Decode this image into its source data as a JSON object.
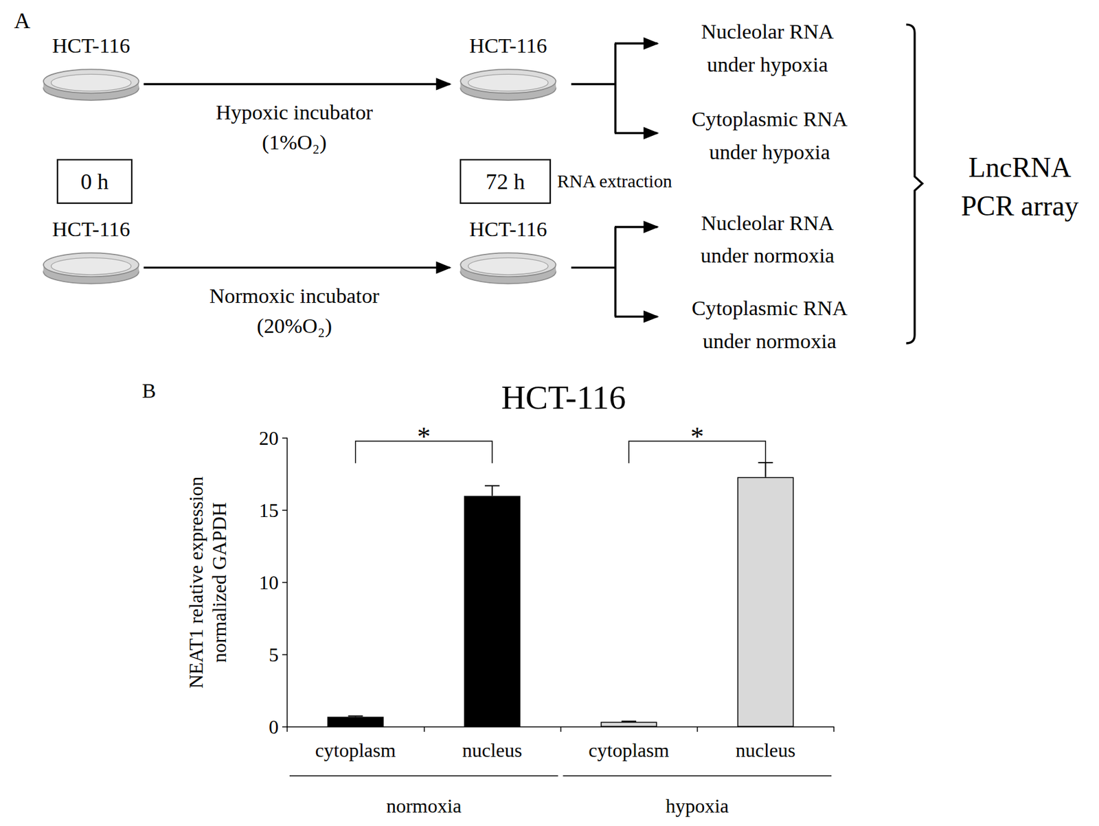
{
  "diagram": {
    "letter": "A",
    "rows": [
      {
        "cell_line_start": "HCT-116",
        "incubator": "Hypoxic incubator",
        "oxygen": "(1%O₂)",
        "cell_line_end": "HCT-116",
        "fractions": [
          "Nucleolar RNA\nunder hypoxia",
          "Cytoplasmic RNA\nunder hypoxia"
        ]
      },
      {
        "cell_line_start": "HCT-116",
        "incubator": "Normoxic incubator",
        "oxygen": "(20%O₂)",
        "cell_line_end": "HCT-116",
        "fractions": [
          "Nucleolar RNA\nunder normoxia",
          "Cytoplasmic RNA\nunder normoxia"
        ]
      }
    ],
    "start_time": "0 h",
    "end_time": "72 h",
    "step": "RNA extraction",
    "assay": "LncRNA\nPCR array"
  },
  "chart_data": {
    "type": "bar",
    "letter": "B",
    "title": "HCT-116",
    "ylabel": "NEAT1 relative expression\nnormalized GAPDH",
    "categories": [
      "cytoplasm",
      "nucleus",
      "cytoplasm",
      "nucleus"
    ],
    "group_labels": [
      "normoxia",
      "normoxia",
      "hypoxia",
      "hypoxia"
    ],
    "values": [
      0.7,
      16.0,
      0.35,
      17.3
    ],
    "errors": [
      0.05,
      0.7,
      0.04,
      1.0
    ],
    "colors": [
      "#000000",
      "#000000",
      "#d9d9d9",
      "#d9d9d9"
    ],
    "ylim": [
      0,
      20
    ],
    "yticks": [
      0,
      5,
      10,
      15,
      20
    ],
    "grid": false,
    "annotations": [
      {
        "text": "*",
        "group": "normoxia"
      },
      {
        "text": "*",
        "group": "hypoxia"
      }
    ]
  }
}
